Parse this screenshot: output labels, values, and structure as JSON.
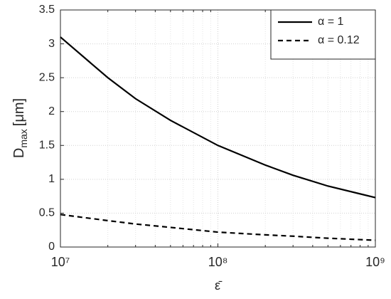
{
  "chart_data": {
    "type": "line",
    "xlabel": "ε̄",
    "ylabel": {
      "main": "D",
      "sub": "max",
      "unit": "[μm]"
    },
    "x": [
      10000000,
      20000000,
      30000000,
      50000000,
      100000000,
      200000000,
      300000000,
      500000000,
      1000000000
    ],
    "series": [
      {
        "name": "α = 1",
        "color": "#000000",
        "dash": "solid",
        "values": [
          3.1,
          2.5,
          2.19,
          1.87,
          1.5,
          1.21,
          1.06,
          0.9,
          0.73
        ]
      },
      {
        "name": "α = 0.12",
        "color": "#000000",
        "dash": "dashed",
        "values": [
          0.48,
          0.39,
          0.34,
          0.29,
          0.22,
          0.18,
          0.16,
          0.13,
          0.1
        ]
      }
    ],
    "xlog": true,
    "xlim": [
      10000000,
      1000000000
    ],
    "xticks": [
      {
        "value": 10000000,
        "label": "10⁷"
      },
      {
        "value": 100000000,
        "label": "10⁸"
      },
      {
        "value": 1000000000,
        "label": "10⁹"
      }
    ],
    "ylim": [
      0,
      3.5
    ],
    "yticks": [
      0,
      0.5,
      1,
      1.5,
      2,
      2.5,
      3,
      3.5
    ],
    "grid": true,
    "minor_grid": true,
    "legend": "upper right"
  }
}
